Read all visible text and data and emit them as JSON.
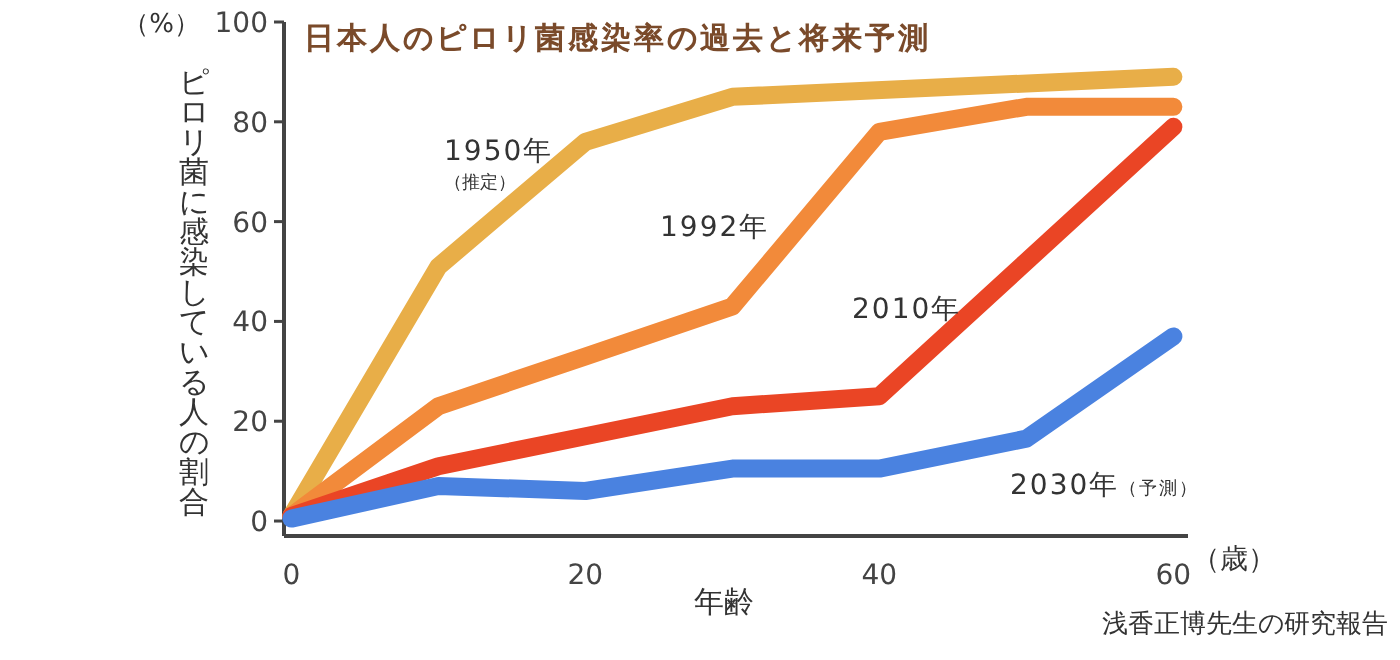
{
  "chart_data": {
    "type": "line",
    "title": "日本人のピロリ菌感染率の過去と将来予測",
    "xlabel": "年齢",
    "ylabel": "ピロリ菌に感染している人の割合",
    "x": [
      0,
      10,
      20,
      30,
      40,
      50,
      60
    ],
    "series": [
      {
        "name": "1950年（推定）",
        "color": "#e8ae48",
        "values": [
          1,
          51,
          76,
          85,
          null,
          null,
          89
        ]
      },
      {
        "name": "1992年",
        "color": "#f28a3a",
        "values": [
          1,
          23,
          33,
          43,
          78,
          83,
          83
        ]
      },
      {
        "name": "2010年",
        "color": "#ea4525",
        "values": [
          1,
          11,
          17,
          23,
          25,
          null,
          79
        ]
      },
      {
        "name": "2030年（予測）",
        "color": "#4a82e0",
        "values": [
          0.5,
          7,
          6,
          10.5,
          10.5,
          16.5,
          37
        ]
      }
    ],
    "xlim": [
      -0.5,
      61
    ],
    "ylim": [
      -3,
      100
    ],
    "xticks": [
      0,
      20,
      40,
      60
    ],
    "yticks": [
      0,
      20,
      40,
      60,
      80,
      100
    ],
    "grid": false,
    "legend": false,
    "line_style": "solid",
    "marker": "none",
    "annotations": [
      "（%）",
      "（歳）",
      "浅香正博先生の研究報告"
    ]
  }
}
